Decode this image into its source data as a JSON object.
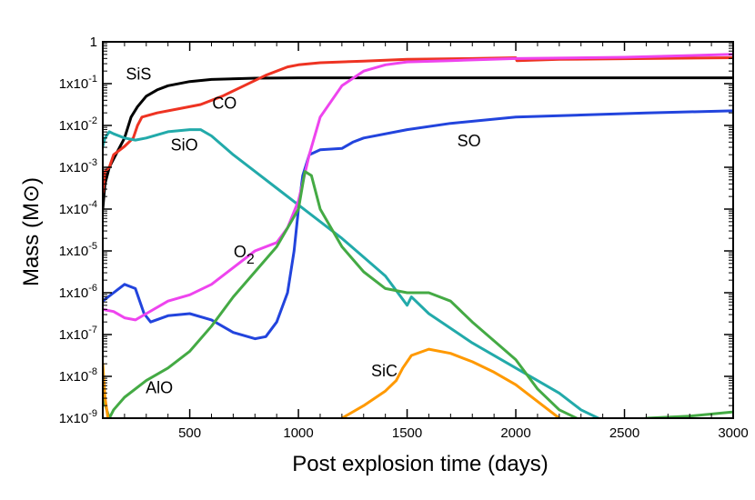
{
  "chart_data": {
    "type": "line",
    "title": "",
    "xlabel": "Post explosion time (days)",
    "ylabel": "Mass (M⊙)",
    "xlim": [
      100,
      3000
    ],
    "ylim_log10": [
      -9,
      0
    ],
    "yscale": "log",
    "x_ticks": [
      {
        "value": 500,
        "label": "500"
      },
      {
        "value": 1000,
        "label": "1000"
      },
      {
        "value": 1500,
        "label": "1500"
      },
      {
        "value": 2000,
        "label": "2000"
      },
      {
        "value": 2500,
        "label": "2500"
      },
      {
        "value": 3000,
        "label": "3000"
      }
    ],
    "y_ticks": [
      {
        "log10": 0,
        "base": "1",
        "exp": ""
      },
      {
        "log10": -1,
        "base": "1x10",
        "exp": "-1"
      },
      {
        "log10": -2,
        "base": "1x10",
        "exp": "-2"
      },
      {
        "log10": -3,
        "base": "1x10",
        "exp": "-3"
      },
      {
        "log10": -4,
        "base": "1x10",
        "exp": "-4"
      },
      {
        "log10": -5,
        "base": "1x10",
        "exp": "-5"
      },
      {
        "log10": -6,
        "base": "1x10",
        "exp": "-6"
      },
      {
        "log10": -7,
        "base": "1x10",
        "exp": "-7"
      },
      {
        "log10": -8,
        "base": "1x10",
        "exp": "-8"
      },
      {
        "log10": -9,
        "base": "1x10",
        "exp": "-9"
      }
    ],
    "series": [
      {
        "name": "SiS",
        "color": "#000000",
        "label": {
          "text": "SiS",
          "sub": "",
          "x": 265,
          "log10": -0.9
        },
        "points": [
          [
            100,
            -4
          ],
          [
            110,
            -3.4
          ],
          [
            130,
            -3.0
          ],
          [
            150,
            -2.8
          ],
          [
            200,
            -2.3
          ],
          [
            230,
            -1.8
          ],
          [
            260,
            -1.55
          ],
          [
            300,
            -1.3
          ],
          [
            350,
            -1.15
          ],
          [
            400,
            -1.05
          ],
          [
            500,
            -0.95
          ],
          [
            600,
            -0.9
          ],
          [
            800,
            -0.87
          ],
          [
            1000,
            -0.86
          ],
          [
            1500,
            -0.86
          ],
          [
            2000,
            -0.86
          ],
          [
            2500,
            -0.86
          ],
          [
            3000,
            -0.86
          ]
        ]
      },
      {
        "name": "CO",
        "color": "#ee3322",
        "label": {
          "text": "CO",
          "sub": "",
          "x": 660,
          "log10": -1.6
        },
        "points": [
          [
            100,
            -3.6
          ],
          [
            110,
            -3.1
          ],
          [
            130,
            -3.0
          ],
          [
            150,
            -2.7
          ],
          [
            200,
            -2.5
          ],
          [
            240,
            -2.3
          ],
          [
            260,
            -2.0
          ],
          [
            280,
            -1.8
          ],
          [
            350,
            -1.7
          ],
          [
            450,
            -1.6
          ],
          [
            550,
            -1.5
          ],
          [
            650,
            -1.3
          ],
          [
            750,
            -1.05
          ],
          [
            850,
            -0.8
          ],
          [
            950,
            -0.6
          ],
          [
            1000,
            -0.55
          ],
          [
            1100,
            -0.5
          ],
          [
            1300,
            -0.46
          ],
          [
            1500,
            -0.42
          ],
          [
            1800,
            -0.4
          ],
          [
            2000,
            -0.38
          ],
          [
            2005,
            -0.45
          ],
          [
            2200,
            -0.42
          ],
          [
            2600,
            -0.4
          ],
          [
            3000,
            -0.38
          ]
        ]
      },
      {
        "name": "SiO",
        "color": "#22aaaa",
        "label": {
          "text": "SiO",
          "sub": "",
          "x": 475,
          "log10": -2.6
        },
        "points": [
          [
            100,
            -2.5
          ],
          [
            110,
            -2.3
          ],
          [
            130,
            -2.15
          ],
          [
            150,
            -2.2
          ],
          [
            200,
            -2.3
          ],
          [
            250,
            -2.35
          ],
          [
            300,
            -2.3
          ],
          [
            400,
            -2.15
          ],
          [
            500,
            -2.1
          ],
          [
            550,
            -2.1
          ],
          [
            600,
            -2.25
          ],
          [
            700,
            -2.7
          ],
          [
            800,
            -3.1
          ],
          [
            900,
            -3.5
          ],
          [
            1000,
            -3.9
          ],
          [
            1100,
            -4.3
          ],
          [
            1200,
            -4.7
          ],
          [
            1300,
            -5.15
          ],
          [
            1400,
            -5.6
          ],
          [
            1500,
            -6.3
          ],
          [
            1520,
            -6.1
          ],
          [
            1600,
            -6.5
          ],
          [
            1800,
            -7.2
          ],
          [
            2000,
            -7.8
          ],
          [
            2200,
            -8.4
          ],
          [
            2300,
            -8.8
          ],
          [
            2400,
            -9.05
          ]
        ]
      },
      {
        "name": "SO",
        "color": "#2244dd",
        "label": {
          "text": "SO",
          "sub": "",
          "x": 1785,
          "log10": -2.5
        },
        "points": [
          [
            100,
            -6.2
          ],
          [
            150,
            -6.0
          ],
          [
            200,
            -5.8
          ],
          [
            250,
            -5.9
          ],
          [
            290,
            -6.5
          ],
          [
            320,
            -6.7
          ],
          [
            400,
            -6.55
          ],
          [
            500,
            -6.5
          ],
          [
            600,
            -6.65
          ],
          [
            700,
            -6.95
          ],
          [
            800,
            -7.1
          ],
          [
            850,
            -7.05
          ],
          [
            900,
            -6.7
          ],
          [
            950,
            -6.0
          ],
          [
            980,
            -5.0
          ],
          [
            1000,
            -4.0
          ],
          [
            1020,
            -3.2
          ],
          [
            1050,
            -2.7
          ],
          [
            1100,
            -2.58
          ],
          [
            1200,
            -2.55
          ],
          [
            1250,
            -2.4
          ],
          [
            1300,
            -2.3
          ],
          [
            1500,
            -2.1
          ],
          [
            1700,
            -1.95
          ],
          [
            2000,
            -1.8
          ],
          [
            2300,
            -1.75
          ],
          [
            2600,
            -1.7
          ],
          [
            3000,
            -1.65
          ]
        ]
      },
      {
        "name": "O2",
        "color": "#ee44ee",
        "label": {
          "text": "O",
          "sub": "2",
          "x": 750,
          "log10": -5.15
        },
        "points": [
          [
            100,
            -6.4
          ],
          [
            150,
            -6.45
          ],
          [
            200,
            -6.6
          ],
          [
            250,
            -6.65
          ],
          [
            300,
            -6.5
          ],
          [
            400,
            -6.2
          ],
          [
            500,
            -6.05
          ],
          [
            600,
            -5.8
          ],
          [
            700,
            -5.4
          ],
          [
            800,
            -5.0
          ],
          [
            900,
            -4.8
          ],
          [
            950,
            -4.45
          ],
          [
            1000,
            -3.8
          ],
          [
            1050,
            -2.7
          ],
          [
            1100,
            -1.8
          ],
          [
            1200,
            -1.05
          ],
          [
            1300,
            -0.7
          ],
          [
            1400,
            -0.55
          ],
          [
            1500,
            -0.48
          ],
          [
            1700,
            -0.45
          ],
          [
            2000,
            -0.4
          ],
          [
            2500,
            -0.37
          ],
          [
            3000,
            -0.3
          ]
        ]
      },
      {
        "name": "AlO",
        "color": "#44aa44",
        "label": {
          "text": "AlO",
          "sub": "",
          "x": 360,
          "log10": -8.4
        },
        "points": [
          [
            100,
            -8.5
          ],
          [
            130,
            -9.0
          ],
          [
            150,
            -8.8
          ],
          [
            200,
            -8.5
          ],
          [
            300,
            -8.1
          ],
          [
            400,
            -7.8
          ],
          [
            500,
            -7.4
          ],
          [
            600,
            -6.8
          ],
          [
            700,
            -6.1
          ],
          [
            800,
            -5.5
          ],
          [
            900,
            -4.9
          ],
          [
            1000,
            -4.0
          ],
          [
            1030,
            -3.1
          ],
          [
            1060,
            -3.2
          ],
          [
            1100,
            -4.0
          ],
          [
            1200,
            -4.9
          ],
          [
            1300,
            -5.5
          ],
          [
            1400,
            -5.9
          ],
          [
            1500,
            -6.0
          ],
          [
            1600,
            -6.0
          ],
          [
            1700,
            -6.2
          ],
          [
            1800,
            -6.7
          ],
          [
            2000,
            -7.6
          ],
          [
            2100,
            -8.3
          ],
          [
            2200,
            -8.8
          ],
          [
            2300,
            -9.05
          ]
        ]
      },
      {
        "name": "SiC",
        "color": "#ff9900",
        "label": {
          "text": "SiC",
          "sub": "",
          "x": 1395,
          "log10": -8.0
        },
        "points": [
          [
            1200,
            -9.0
          ],
          [
            1300,
            -8.7
          ],
          [
            1400,
            -8.35
          ],
          [
            1450,
            -8.1
          ],
          [
            1480,
            -7.8
          ],
          [
            1520,
            -7.5
          ],
          [
            1600,
            -7.35
          ],
          [
            1700,
            -7.45
          ],
          [
            1800,
            -7.65
          ],
          [
            1900,
            -7.9
          ],
          [
            2000,
            -8.2
          ],
          [
            2100,
            -8.6
          ],
          [
            2200,
            -9.0
          ]
        ]
      }
    ],
    "extra_segments": [
      {
        "name": "AlO-tail",
        "color": "#44aa44",
        "points": [
          [
            2600,
            -9.0
          ],
          [
            2800,
            -8.95
          ],
          [
            3000,
            -8.85
          ]
        ]
      },
      {
        "name": "SiC-early",
        "color": "#ff9900",
        "points": [
          [
            100,
            -7.7
          ],
          [
            110,
            -8.5
          ],
          [
            125,
            -9.05
          ]
        ]
      }
    ],
    "grid": false,
    "legend": "none (inline labels)"
  }
}
